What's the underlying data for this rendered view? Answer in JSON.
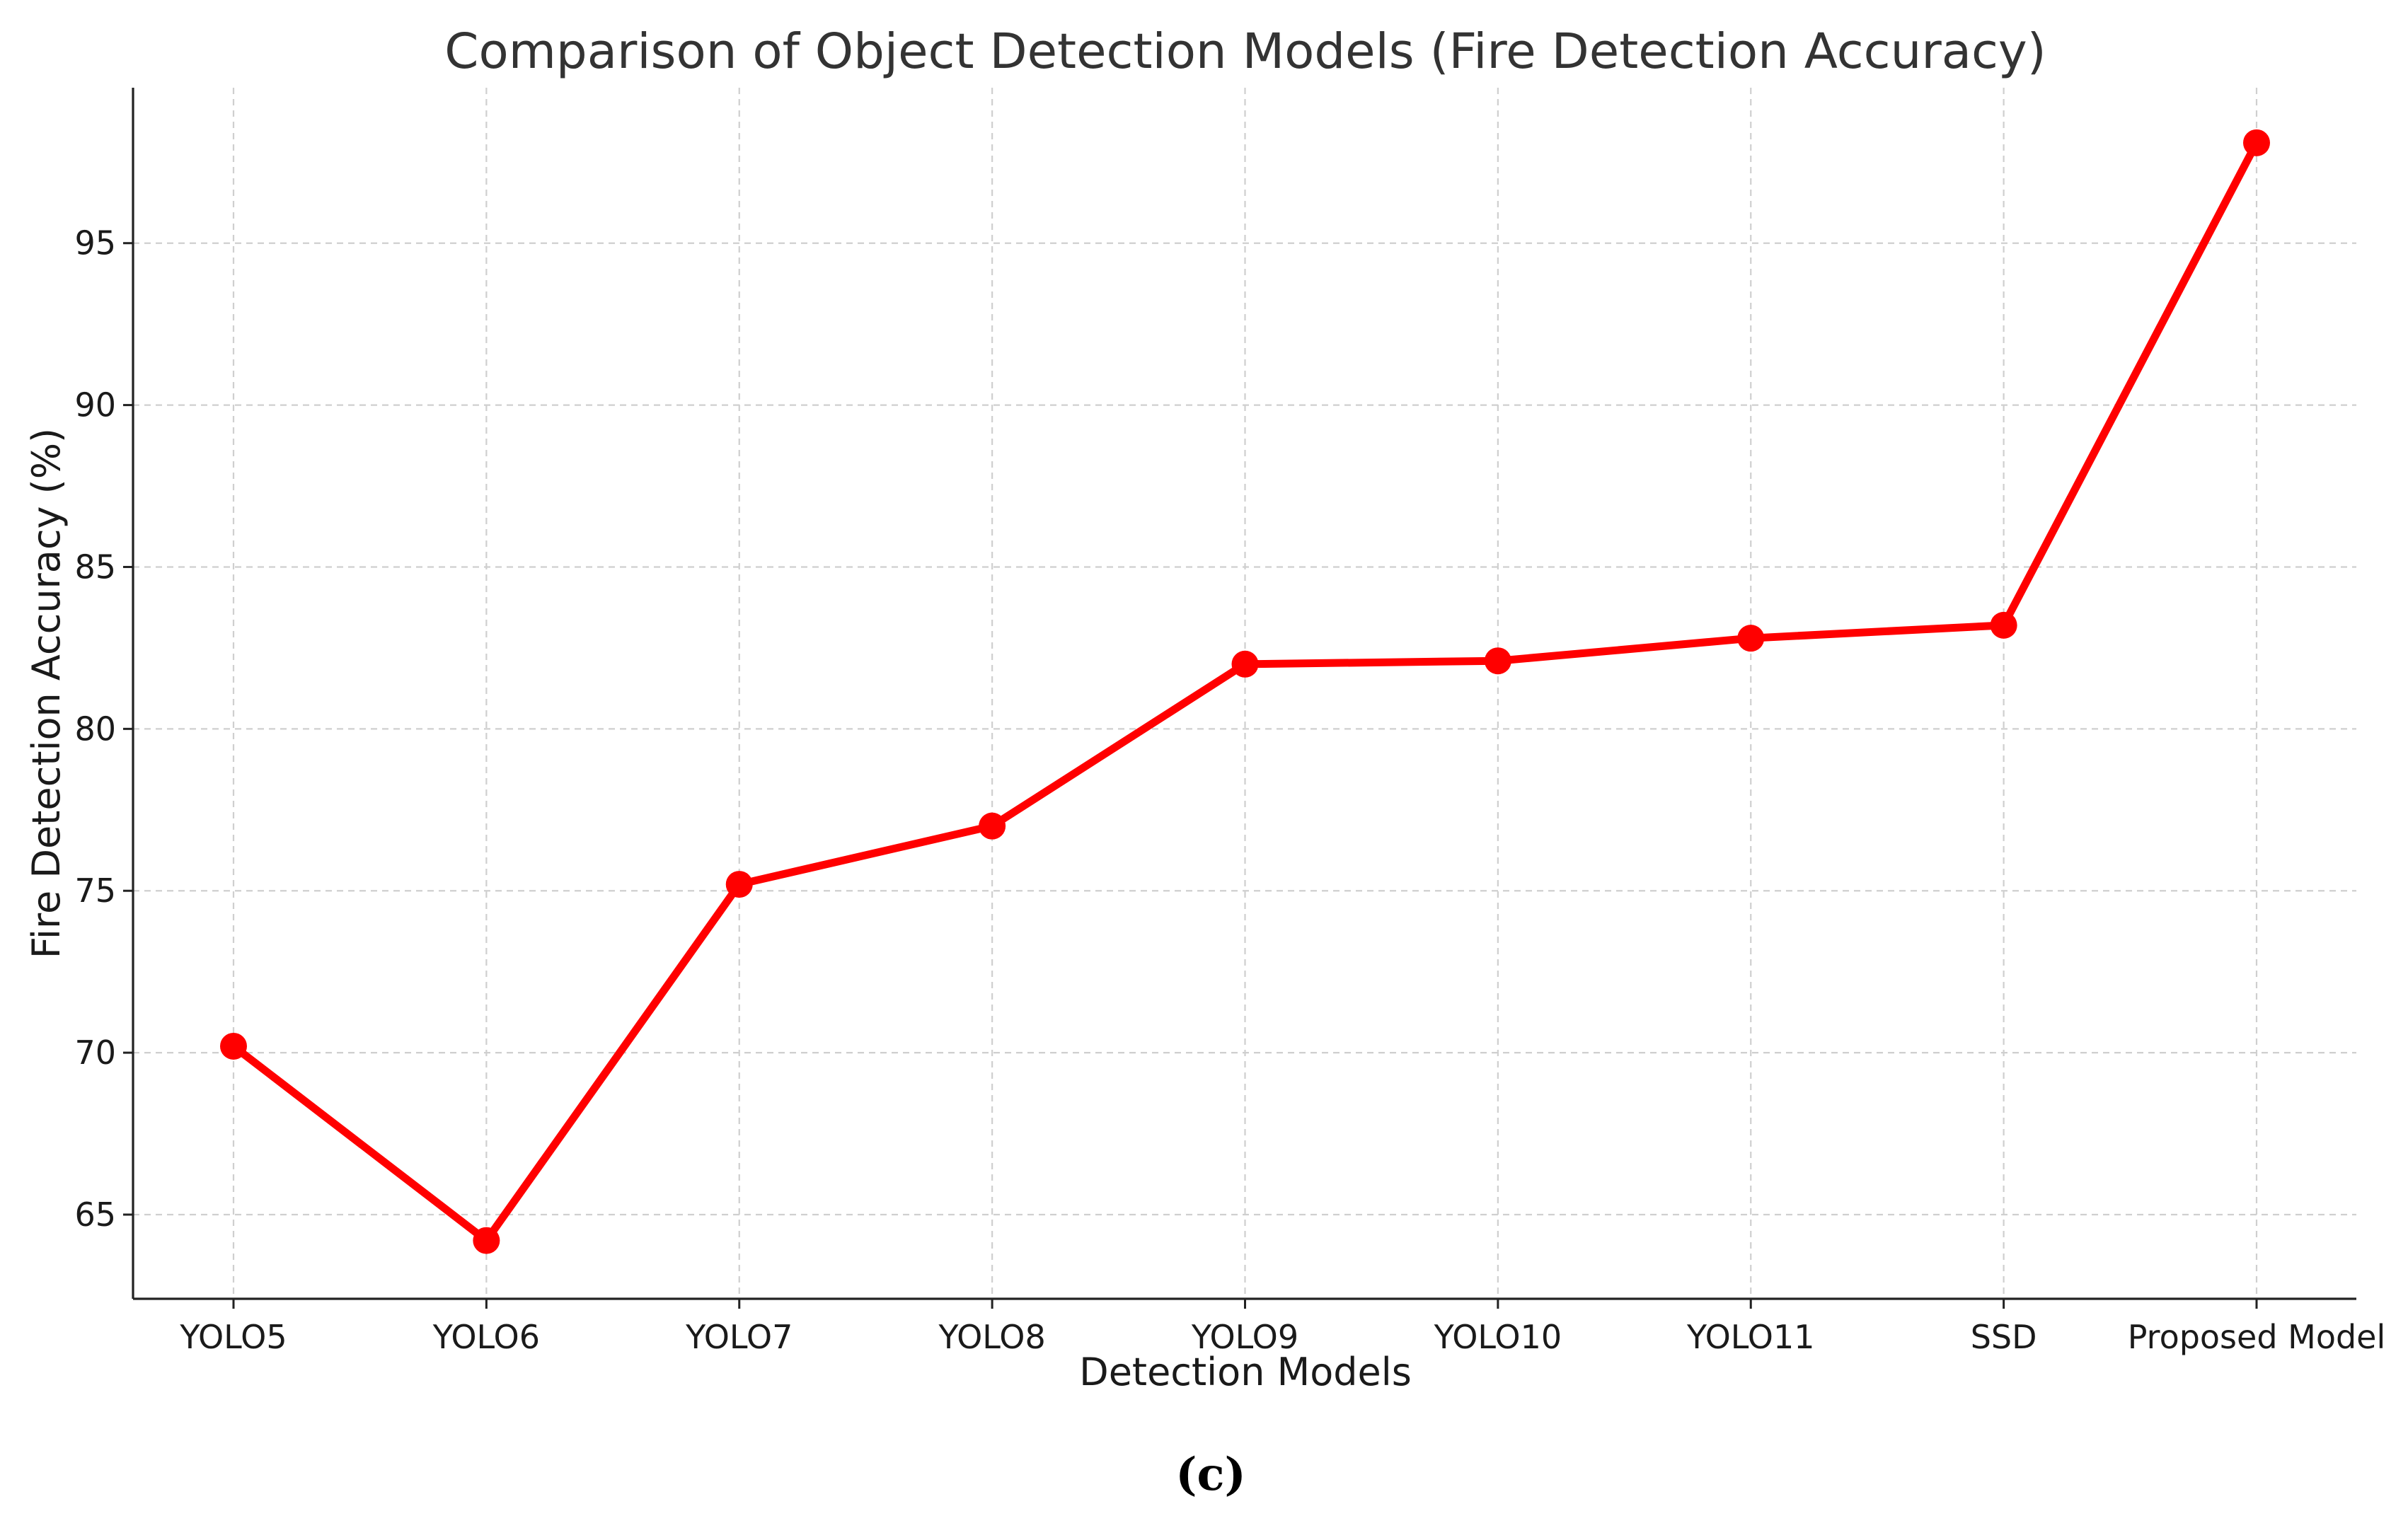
{
  "caption": "(c)",
  "colors": {
    "series": "#ff0000",
    "grid": "#cfcfcf",
    "axis": "#222222",
    "title": "#333333"
  },
  "chart_data": {
    "type": "line",
    "title": "Comparison of Object Detection Models (Fire Detection Accuracy)",
    "xlabel": "Detection Models",
    "ylabel": "Fire Detection Accuracy (%)",
    "categories": [
      "YOLO5",
      "YOLO6",
      "YOLO7",
      "YOLO8",
      "YOLO9",
      "YOLO10",
      "YOLO11",
      "SSD",
      "Proposed Model"
    ],
    "series": [
      {
        "values": [
          70.2,
          64.2,
          75.2,
          77.0,
          82.0,
          82.1,
          82.8,
          83.2,
          98.1
        ]
      }
    ],
    "yticks": [
      65,
      70,
      75,
      80,
      85,
      90,
      95
    ],
    "ylim": [
      62.4,
      99.8
    ],
    "grid": true,
    "legend": "none"
  }
}
